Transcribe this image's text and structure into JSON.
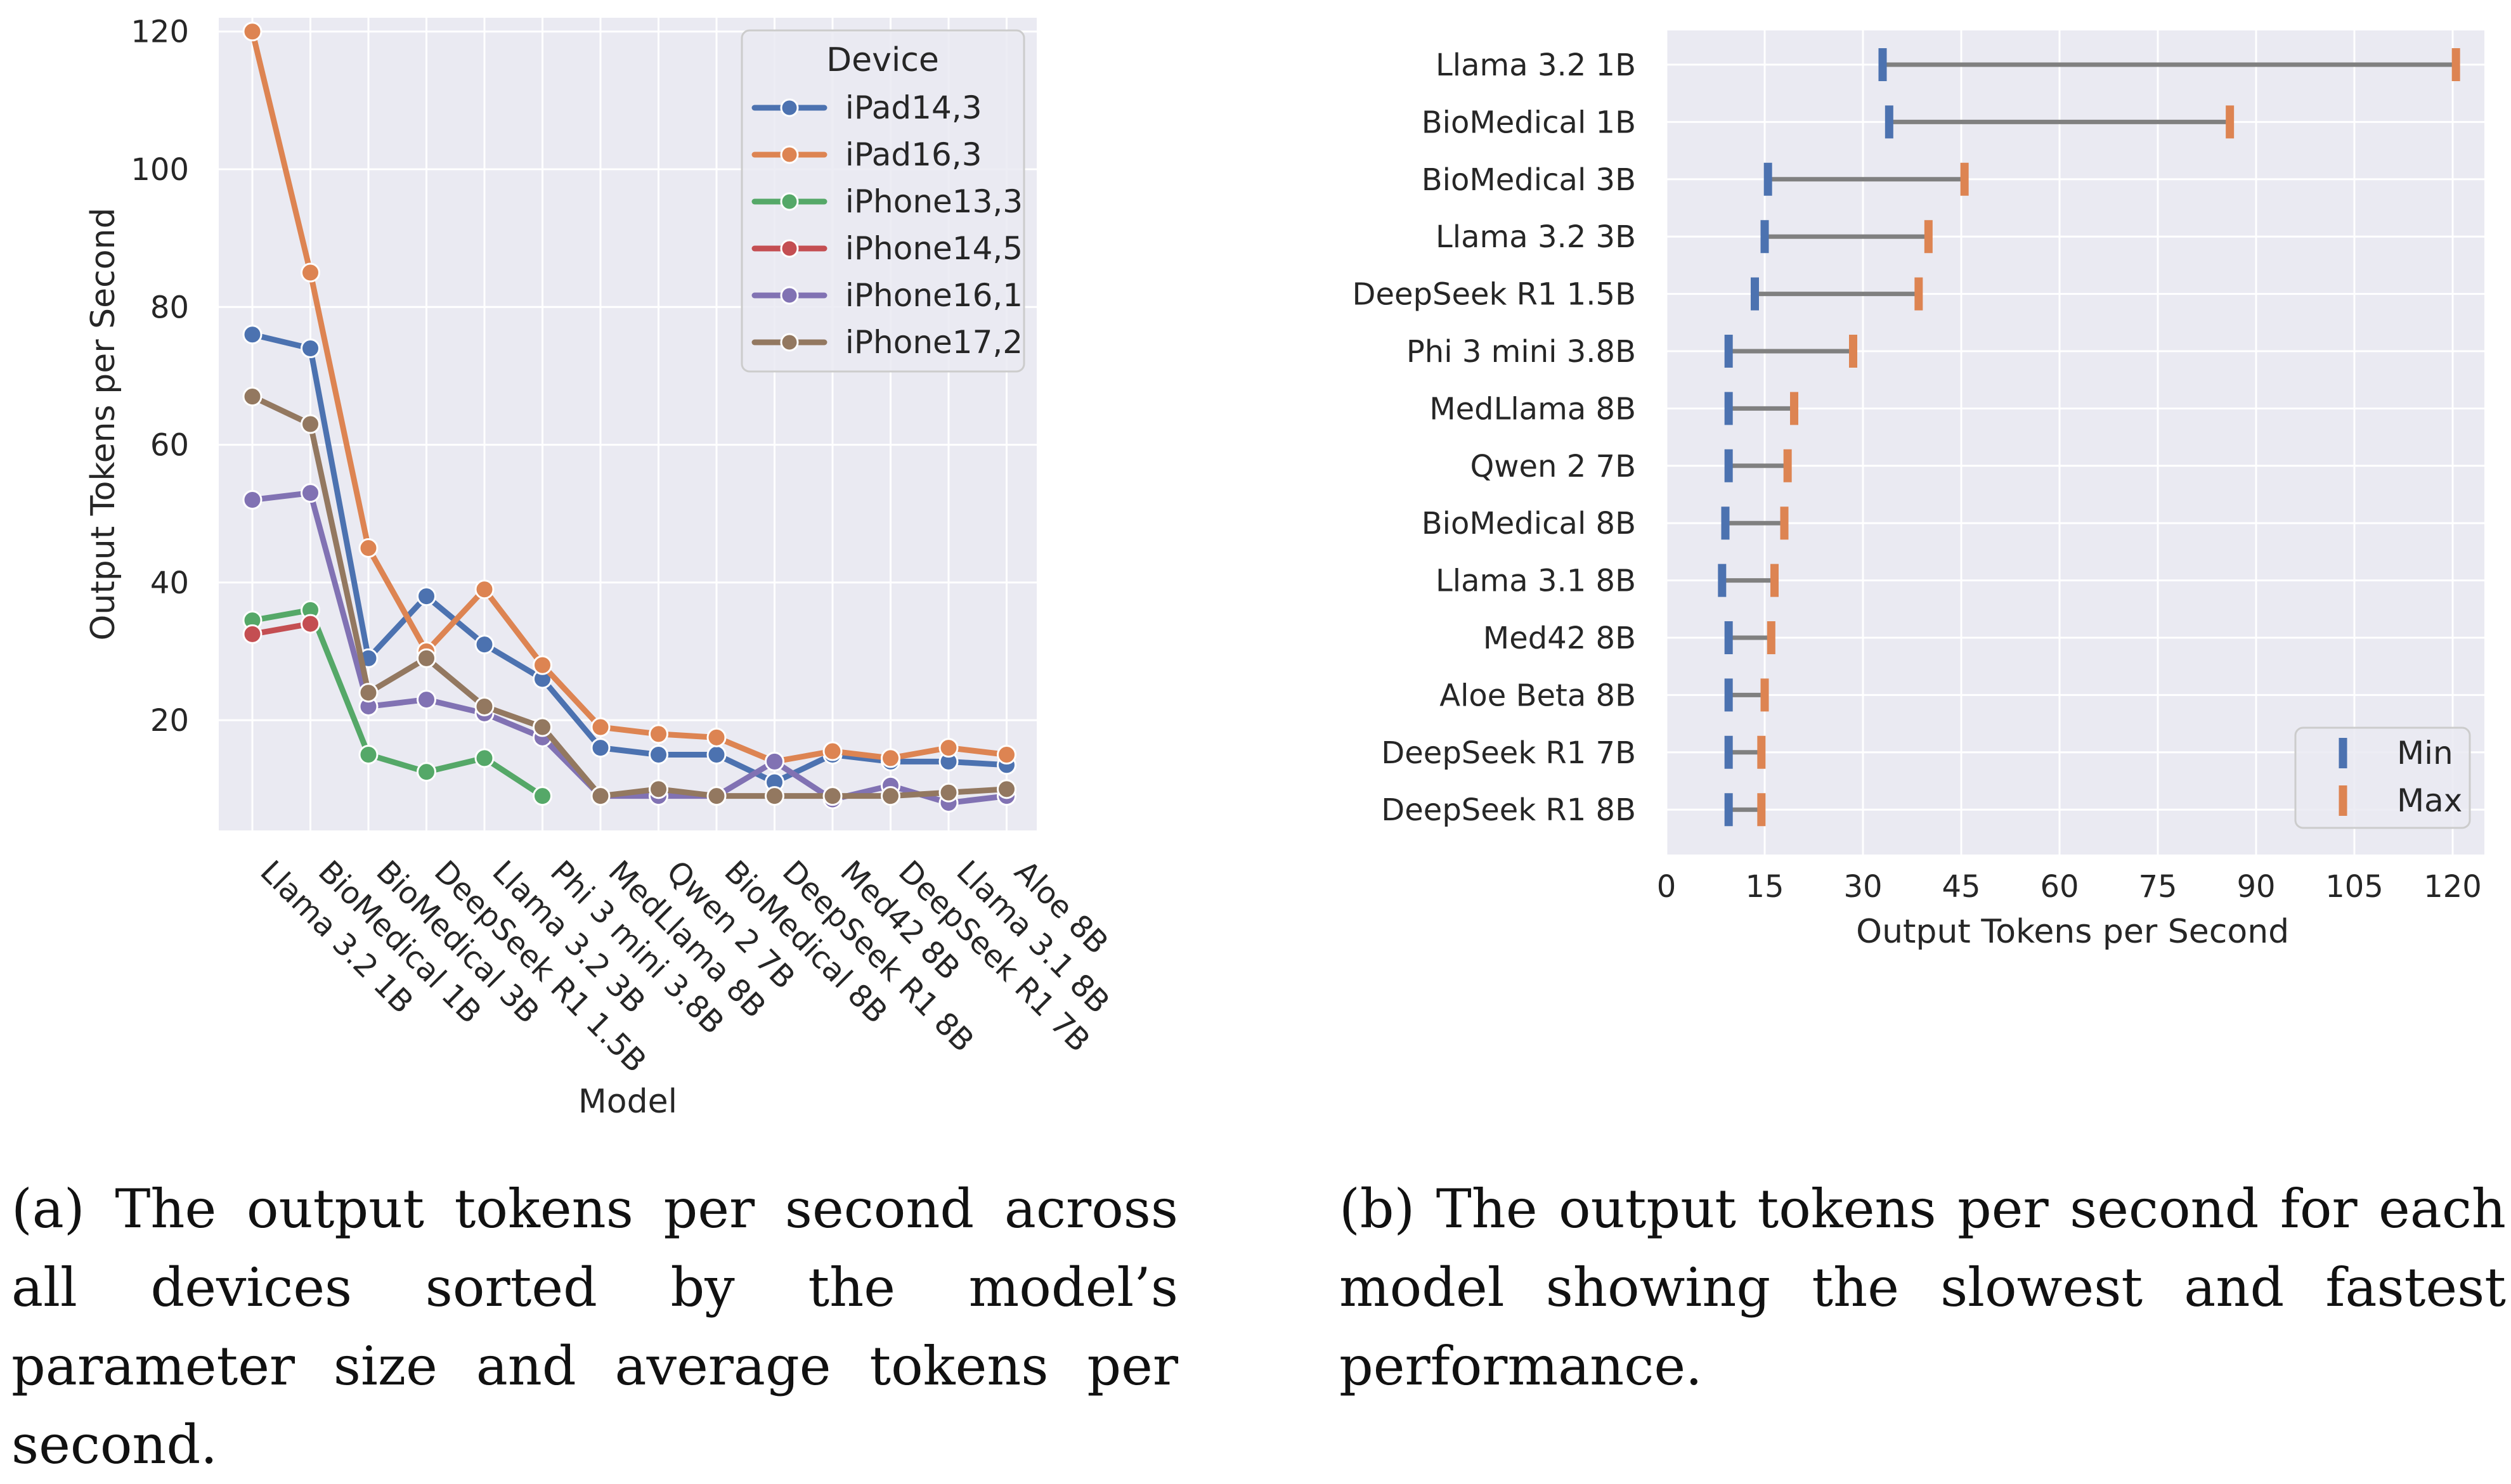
{
  "colors": {
    "panel_bg": "#EAEAF2",
    "grid": "#FFFFFF",
    "text": "#262626",
    "range_line": "#808080",
    "legend_edge": "#CCCCCC"
  },
  "chart_data": [
    {
      "id": "a",
      "type": "line",
      "title": "",
      "xlabel": "Model",
      "ylabel": "Output Tokens per Second",
      "ylim": [
        4,
        122
      ],
      "yticks": [
        20,
        40,
        60,
        80,
        100,
        120
      ],
      "grid": true,
      "legend": {
        "title": "Device",
        "placement": "top-right"
      },
      "categories": [
        "Llama 3.2 1B",
        "BioMedical 1B",
        "BioMedical 3B",
        "DeepSeek R1 1.5B",
        "Llama 3.2 3B",
        "Phi 3 mini 3.8B",
        "MedLlama 8B",
        "Qwen 2 7B",
        "BioMedical 8B",
        "DeepSeek R1 8B",
        "Med42 8B",
        "DeepSeek R1 7B",
        "Llama 3.1 8B",
        "Aloe 8B"
      ],
      "series": [
        {
          "name": "iPad14,3",
          "color": "#4C72B0",
          "values": [
            76,
            74,
            29,
            38,
            31,
            26,
            16,
            15,
            15,
            11,
            15,
            14,
            14,
            13.5
          ]
        },
        {
          "name": "iPad16,3",
          "color": "#DD8452",
          "values": [
            120,
            85,
            45,
            30,
            39,
            28,
            19,
            18,
            17.5,
            14,
            15.5,
            14.5,
            16,
            15
          ]
        },
        {
          "name": "iPhone13,3",
          "color": "#55A868",
          "values": [
            34.5,
            36,
            15,
            12.5,
            14.5,
            9,
            null,
            null,
            null,
            null,
            null,
            null,
            null,
            null
          ]
        },
        {
          "name": "iPhone14,5",
          "color": "#C44E52",
          "values": [
            32.5,
            34,
            null,
            null,
            null,
            null,
            null,
            null,
            null,
            null,
            null,
            null,
            null,
            null
          ]
        },
        {
          "name": "iPhone16,1",
          "color": "#8172B3",
          "values": [
            52,
            53,
            22,
            23,
            21,
            17.5,
            9,
            9,
            9,
            14,
            8.5,
            10.5,
            8,
            9
          ]
        },
        {
          "name": "iPhone17,2",
          "color": "#937860",
          "values": [
            67,
            63,
            24,
            29,
            22,
            19,
            9,
            10,
            9,
            9,
            9,
            9,
            9.5,
            10
          ]
        }
      ]
    },
    {
      "id": "b",
      "type": "range",
      "title": "",
      "xlabel": "Output Tokens per Second",
      "ylabel": "",
      "xlim": [
        0,
        125
      ],
      "xticks": [
        0,
        15,
        30,
        45,
        60,
        75,
        90,
        105,
        120
      ],
      "grid": true,
      "legend": {
        "placement": "bottom-right",
        "entries": [
          {
            "name": "Min",
            "color": "#4C72B0"
          },
          {
            "name": "Max",
            "color": "#DD8452"
          }
        ]
      },
      "categories": [
        "Llama 3.2 1B",
        "BioMedical 1B",
        "BioMedical 3B",
        "Llama 3.2 3B",
        "DeepSeek R1 1.5B",
        "Phi 3 mini 3.8B",
        "MedLlama 8B",
        "Qwen 2 7B",
        "BioMedical 8B",
        "Llama 3.1 8B",
        "Med42 8B",
        "Aloe Beta 8B",
        "DeepSeek R1 7B",
        "DeepSeek R1 8B"
      ],
      "min": [
        33,
        34,
        15.5,
        15,
        13.5,
        9.5,
        9.5,
        9.5,
        9,
        8.5,
        9.5,
        9.5,
        9.5,
        9.5
      ],
      "max": [
        120.5,
        86,
        45.5,
        40,
        38.5,
        28.5,
        19.5,
        18.5,
        18,
        16.5,
        16,
        15,
        14.5,
        14.5
      ]
    }
  ],
  "captions": {
    "a": "(a) The output tokens per second across all devices sorted by the model’s parameter size and average tokens per second.",
    "b": "(b) The output tokens per second for each model showing the slowest and fastest performance."
  }
}
